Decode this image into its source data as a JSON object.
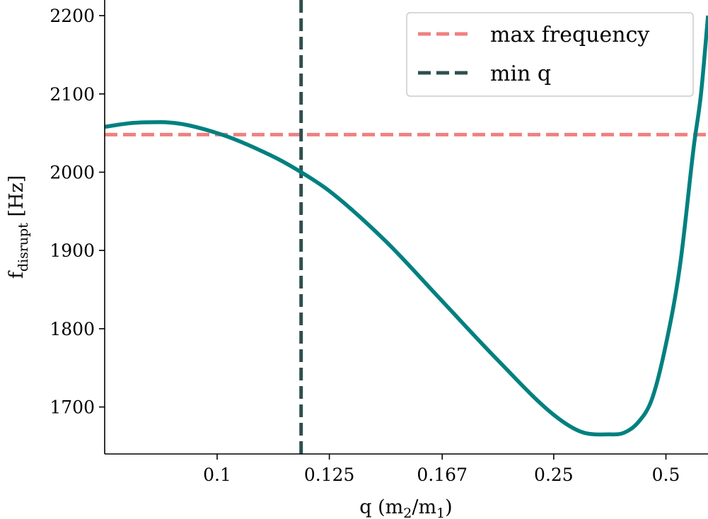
{
  "chart_data": {
    "type": "line",
    "title": "",
    "xlabel": {
      "main": "q (m",
      "sub1": "2",
      "mid": "/m",
      "sub2": "1",
      "end": ")"
    },
    "ylabel": {
      "main": "f",
      "sub": "disrupt",
      "unit": " [Hz]"
    },
    "x_scale": "reciprocal",
    "x_ticks": [
      0.1,
      0.125,
      0.167,
      0.25,
      0.5
    ],
    "x_tick_labels": [
      "0.1",
      "0.125",
      "0.167",
      "0.25",
      "0.5"
    ],
    "xlim": [
      0.0833,
      0.8
    ],
    "y_ticks": [
      1700,
      1800,
      1900,
      2000,
      2100,
      2200
    ],
    "y_tick_labels": [
      "1700",
      "1800",
      "1900",
      "2000",
      "2100",
      "2200"
    ],
    "ylim": [
      1640,
      2220
    ],
    "grid": false,
    "legend_position": "top-right",
    "series": [
      {
        "color": "#008080",
        "style": "solid",
        "x": [
          0.0833,
          0.087,
          0.0909,
          0.1,
          0.1111,
          0.1176,
          0.125,
          0.1429,
          0.1667,
          0.2,
          0.25,
          0.2857,
          0.3333,
          0.3636,
          0.4,
          0.4444,
          0.5,
          0.5714,
          0.6667,
          0.7273,
          0.8
        ],
        "y": [
          2058,
          2063,
          2064,
          2050,
          2020,
          2000,
          1976,
          1912,
          1836,
          1760,
          1690,
          1668,
          1665,
          1667,
          1680,
          1710,
          1780,
          1880,
          2035,
          2100,
          2200
        ]
      }
    ],
    "reference_lines": [
      {
        "name": "max frequency",
        "orientation": "horizontal",
        "value": 2048,
        "color": "#f08080",
        "style": "dashed"
      },
      {
        "name": "min q",
        "orientation": "vertical",
        "value": 0.1176,
        "color": "#2f4f4f",
        "style": "dashed"
      }
    ]
  }
}
